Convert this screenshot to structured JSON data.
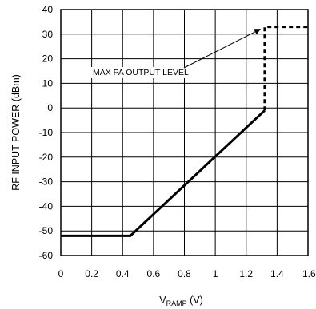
{
  "chart_data": {
    "type": "line",
    "xlabel": {
      "main": "V",
      "sub": "RAMP",
      "unit": " (V)"
    },
    "ylabel": "RF INPUT POWER (dBm)",
    "xlim": [
      0,
      1.6
    ],
    "ylim": [
      -60,
      40
    ],
    "x_ticks": [
      "0",
      "0.2",
      "0.4",
      "0.6",
      "0.8",
      "1",
      "1.2",
      "1.4",
      "1.6"
    ],
    "y_ticks": [
      "40",
      "30",
      "20",
      "10",
      "0",
      "-10",
      "-20",
      "-30",
      "-40",
      "-50",
      "-60"
    ],
    "grid": true,
    "series": [
      {
        "style": "solid",
        "points": [
          [
            0,
            -52
          ],
          [
            0.45,
            -52
          ],
          [
            1.32,
            -1
          ]
        ]
      },
      {
        "style": "dashed",
        "points": [
          [
            1.32,
            -1
          ],
          [
            1.32,
            33
          ],
          [
            1.6,
            33
          ]
        ]
      }
    ],
    "annotation": {
      "text": "MAX PA OUTPUT LEVEL",
      "arrow_to": [
        1.29,
        32
      ]
    }
  }
}
